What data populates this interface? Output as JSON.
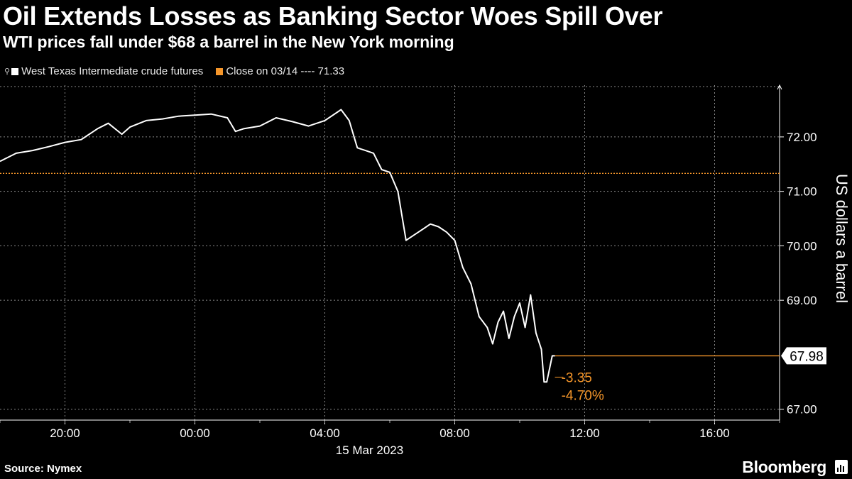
{
  "header": {
    "title": "Oil Extends Losses as Banking Sector Woes Spill Over",
    "subtitle": "WTI prices fall under $68 a barrel in the New York morning"
  },
  "legend": {
    "series_label": "West Texas Intermediate crude futures",
    "close_label": "Close on 03/14 ---- 71.33"
  },
  "footer": {
    "source": "Source: Nymex",
    "brand": "Bloomberg"
  },
  "colors": {
    "line": "#ffffff",
    "accent": "#f5962a",
    "grid": "#8a8a8a",
    "background": "#000000"
  },
  "chart_data": {
    "type": "line",
    "series": [
      {
        "name": "West Texas Intermediate crude futures",
        "x": [
          "18:00",
          "18:30",
          "19:00",
          "19:30",
          "20:00",
          "20:30",
          "21:00",
          "21:20",
          "21:45",
          "22:00",
          "22:30",
          "23:00",
          "23:30",
          "00:00",
          "00:30",
          "01:00",
          "01:15",
          "01:30",
          "02:00",
          "02:30",
          "03:00",
          "03:30",
          "04:00",
          "04:30",
          "04:45",
          "05:00",
          "05:15",
          "05:30",
          "05:45",
          "06:00",
          "06:15",
          "06:30",
          "06:45",
          "07:00",
          "07:15",
          "07:30",
          "07:45",
          "08:00",
          "08:15",
          "08:30",
          "08:45",
          "09:00",
          "09:10",
          "09:20",
          "09:30",
          "09:40",
          "09:50",
          "10:00",
          "10:10",
          "10:20",
          "10:30",
          "10:40",
          "10:45",
          "10:50",
          "11:00",
          "11:05"
        ],
        "values": [
          71.55,
          71.7,
          71.75,
          71.82,
          71.9,
          71.95,
          72.15,
          72.25,
          72.05,
          72.18,
          72.3,
          72.33,
          72.38,
          72.4,
          72.42,
          72.35,
          72.1,
          72.15,
          72.2,
          72.35,
          72.28,
          72.2,
          72.3,
          72.5,
          72.3,
          71.8,
          71.75,
          71.7,
          71.4,
          71.35,
          71.0,
          70.1,
          70.2,
          70.3,
          70.4,
          70.35,
          70.25,
          70.1,
          69.6,
          69.3,
          68.7,
          68.5,
          68.2,
          68.6,
          68.8,
          68.3,
          68.7,
          68.95,
          68.5,
          69.1,
          68.4,
          68.1,
          67.5,
          67.5,
          67.98,
          67.98
        ]
      }
    ],
    "reference": {
      "label": "Close on 03/14",
      "value": 71.33
    },
    "last_value_label": "67.98",
    "change_label": "-3.35",
    "change_pct_label": "-4.70%",
    "x_ticks": [
      "20:00",
      "00:00",
      "04:00",
      "08:00",
      "12:00",
      "16:00"
    ],
    "x_date_label": "15 Mar 2023",
    "y_ticks": [
      "72.00",
      "71.00",
      "70.00",
      "69.00",
      "67.00"
    ],
    "ylim": [
      66.8,
      72.95
    ],
    "xlim": [
      "18:00",
      "18:00 next day"
    ],
    "ylabel": "US dollars a barrel",
    "grid": true,
    "y_axis_side": "right"
  }
}
